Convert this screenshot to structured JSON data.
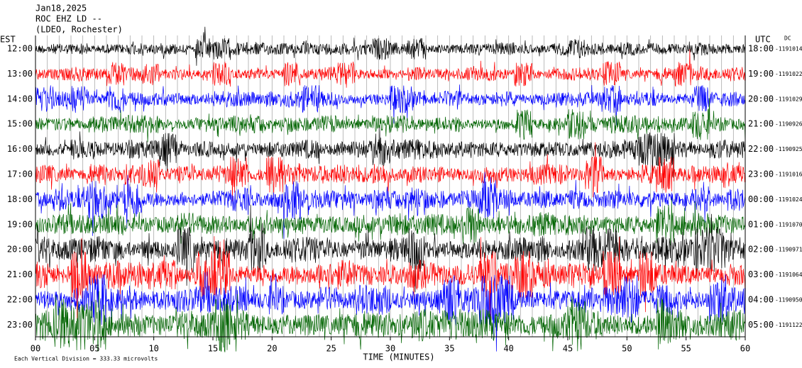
{
  "header": {
    "date": "Jan18,2025",
    "station": "ROC EHZ LD --",
    "network": "(LDEO, Rochester)"
  },
  "left_zone": "EST",
  "right_zone": "UTC",
  "right_tag": "DC",
  "rows": [
    {
      "left": "12:00",
      "right": "18:00",
      "count": "-1191014",
      "color": "#000000"
    },
    {
      "left": "13:00",
      "right": "19:00",
      "count": "-1191022",
      "color": "#ff0000"
    },
    {
      "left": "14:00",
      "right": "20:00",
      "count": "-1191029",
      "color": "#0000ff"
    },
    {
      "left": "15:00",
      "right": "21:00",
      "count": "-1190926",
      "color": "#006400"
    },
    {
      "left": "16:00",
      "right": "22:00",
      "count": "-1190925",
      "color": "#000000"
    },
    {
      "left": "17:00",
      "right": "23:00",
      "count": "-1191016",
      "color": "#ff0000"
    },
    {
      "left": "18:00",
      "right": "00:00",
      "count": "-1191024",
      "color": "#0000ff"
    },
    {
      "left": "19:00",
      "right": "01:00",
      "count": "-1191070",
      "color": "#006400"
    },
    {
      "left": "20:00",
      "right": "02:00",
      "count": "-1190971",
      "color": "#000000"
    },
    {
      "left": "21:00",
      "right": "03:00",
      "count": "-1191064",
      "color": "#ff0000"
    },
    {
      "left": "22:00",
      "right": "04:00",
      "count": "-1190950",
      "color": "#0000ff"
    },
    {
      "left": "23:00",
      "right": "05:00",
      "count": "-1191122",
      "color": "#006400"
    }
  ],
  "x_axis": {
    "ticks": [
      "00",
      "05",
      "10",
      "15",
      "20",
      "25",
      "30",
      "35",
      "40",
      "45",
      "50",
      "55",
      "60"
    ],
    "label": "TIME (MINUTES)"
  },
  "scale_note": "Each Vertical Division = 333.33 microvolts"
}
